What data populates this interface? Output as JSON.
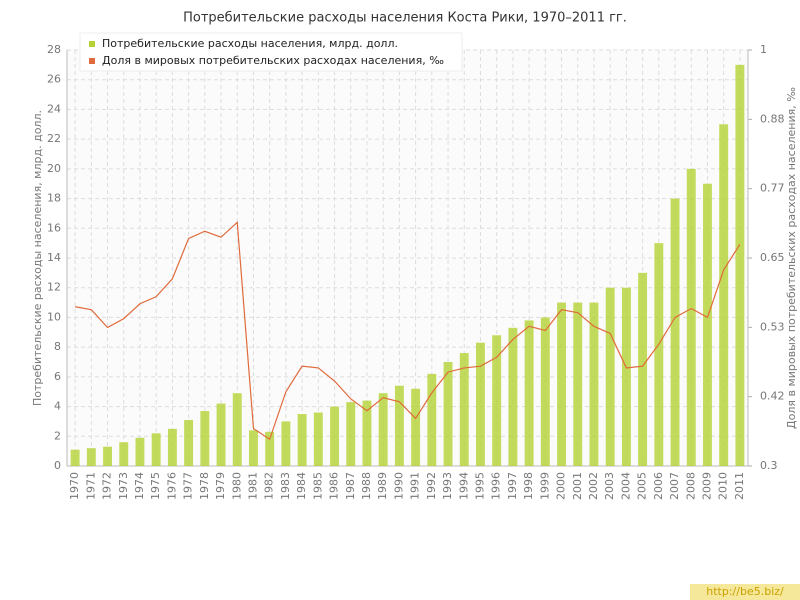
{
  "chart_data": {
    "type": "bar-line",
    "title": "Потребительские расходы населения Коста Рики, 1970–2011 гг.",
    "y_label": "Потребительские расходы населения, млрд. долл.",
    "y2_label": "Доля в мировых потребительских расходах населения, ‰",
    "watermark": "http://be5.biz/",
    "categories": [
      "1970",
      "1971",
      "1972",
      "1973",
      "1974",
      "1975",
      "1976",
      "1977",
      "1978",
      "1979",
      "1980",
      "1981",
      "1982",
      "1983",
      "1984",
      "1985",
      "1986",
      "1987",
      "1988",
      "1989",
      "1990",
      "1991",
      "1992",
      "1993",
      "1994",
      "1995",
      "1996",
      "1997",
      "1998",
      "1999",
      "2000",
      "2001",
      "2002",
      "2003",
      "2004",
      "2005",
      "2006",
      "2007",
      "2008",
      "2009",
      "2010",
      "2011"
    ],
    "series": [
      {
        "name": "Потребительские расходы населения, млрд. долл.",
        "color": "#b5d334",
        "type": "bar",
        "values": [
          1.1,
          1.2,
          1.3,
          1.6,
          1.9,
          2.2,
          2.5,
          3.1,
          3.7,
          4.2,
          4.9,
          2.4,
          2.3,
          3.0,
          3.5,
          3.6,
          4.0,
          4.3,
          4.4,
          4.9,
          5.4,
          5.2,
          6.2,
          7.0,
          7.6,
          8.3,
          8.8,
          9.3,
          9.8,
          10.0,
          11,
          11,
          11,
          12,
          12,
          13,
          15,
          18,
          20,
          19,
          23,
          27
        ]
      },
      {
        "name": "Доля в мировых потребительских расходах населения, ‰",
        "color": "#e06a3b",
        "type": "line",
        "axis": "y2",
        "values": [
          0.568,
          0.563,
          0.533,
          0.548,
          0.573,
          0.585,
          0.615,
          0.683,
          0.695,
          0.685,
          0.71,
          0.363,
          0.345,
          0.425,
          0.468,
          0.465,
          0.443,
          0.413,
          0.393,
          0.415,
          0.408,
          0.38,
          0.423,
          0.458,
          0.465,
          0.468,
          0.483,
          0.513,
          0.535,
          0.528,
          0.563,
          0.558,
          0.535,
          0.523,
          0.465,
          0.468,
          0.505,
          0.55,
          0.565,
          0.55,
          0.63,
          0.673
        ]
      }
    ],
    "ylim": [
      0,
      28
    ],
    "yticks": [
      0,
      2,
      4,
      6,
      8,
      10,
      12,
      14,
      16,
      18,
      20,
      22,
      24,
      26,
      28
    ],
    "y2lim": [
      0.3,
      1
    ],
    "y2ticks": [
      0.3,
      {
        "value": 0.4167,
        "label": "0.42"
      },
      {
        "value": 0.5333,
        "label": "0.53"
      },
      0.65,
      {
        "value": 0.7667,
        "label": "0.77"
      },
      {
        "value": 0.8833,
        "label": "0.88"
      },
      1
    ],
    "grid": true,
    "legend": "top-left"
  }
}
